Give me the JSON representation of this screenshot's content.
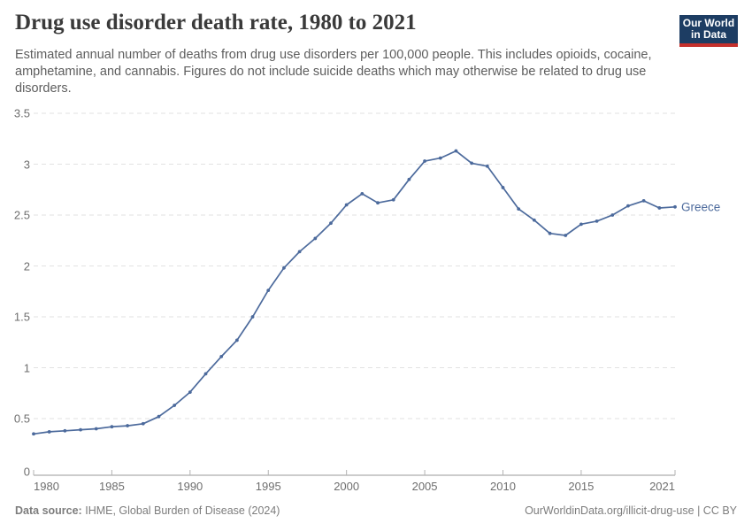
{
  "header": {
    "title": "Drug use disorder death rate, 1980 to 2021",
    "subtitle": "Estimated annual number of deaths from drug use disorders per 100,000 people. This includes opioids, cocaine, amphetamine, and cannabis. Figures do not include suicide deaths which may otherwise be related to drug use disorders.",
    "logo": {
      "line1": "Our World",
      "line2": "in Data"
    }
  },
  "chart_data": {
    "type": "line",
    "title": "Drug use disorder death rate, 1980 to 2021",
    "xlabel": "",
    "ylabel": "",
    "xlim": [
      1980,
      2021
    ],
    "ylim": [
      0,
      3.5
    ],
    "xticks": [
      1980,
      1985,
      1990,
      1995,
      2000,
      2005,
      2010,
      2015,
      2021
    ],
    "yticks": [
      0,
      0.5,
      1,
      1.5,
      2,
      2.5,
      3,
      3.5
    ],
    "grid": "horizontal-dashed",
    "legend": "series-end-label",
    "x": [
      1980,
      1981,
      1982,
      1983,
      1984,
      1985,
      1986,
      1987,
      1988,
      1989,
      1990,
      1991,
      1992,
      1993,
      1994,
      1995,
      1996,
      1997,
      1998,
      1999,
      2000,
      2001,
      2002,
      2003,
      2004,
      2005,
      2006,
      2007,
      2008,
      2009,
      2010,
      2011,
      2012,
      2013,
      2014,
      2015,
      2016,
      2017,
      2018,
      2019,
      2020,
      2021
    ],
    "series": [
      {
        "name": "Greece",
        "values": [
          0.35,
          0.37,
          0.38,
          0.39,
          0.4,
          0.42,
          0.43,
          0.45,
          0.52,
          0.63,
          0.76,
          0.94,
          1.11,
          1.27,
          1.5,
          1.76,
          1.98,
          2.14,
          2.27,
          2.42,
          2.6,
          2.71,
          2.62,
          2.65,
          2.85,
          3.03,
          3.06,
          3.13,
          3.01,
          2.98,
          2.77,
          2.56,
          2.45,
          2.32,
          2.3,
          2.41,
          2.44,
          2.5,
          2.59,
          2.64,
          2.57,
          2.58
        ]
      }
    ]
  },
  "theme": {
    "line_color": "#4c6a9c",
    "grid_color": "#e2e2e2",
    "axis_color": "#9a9a9a",
    "tick_label_color": "#6e6e6e",
    "title_color": "#3a3a3a",
    "subtitle_color": "#5e5e5e",
    "footer_color": "#7d7d7d",
    "logo_bg": "#1d3d63",
    "logo_stripe": "#c5302c",
    "background": "#ffffff"
  },
  "footer": {
    "source_label": "Data source:",
    "source_value": "IHME, Global Burden of Disease (2024)",
    "link": "OurWorldinData.org/illicit-drug-use",
    "separator": " | ",
    "license": "CC BY"
  }
}
